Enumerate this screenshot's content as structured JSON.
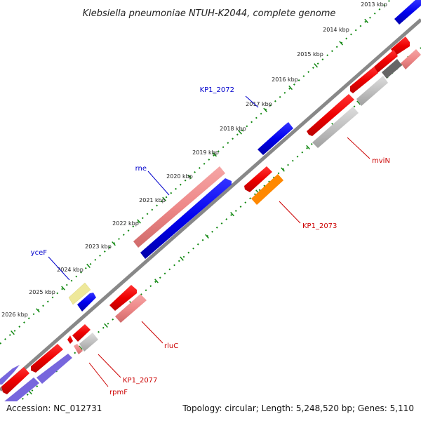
{
  "title": "Klebsiella pneumoniae NTUH-K2044, complete genome",
  "ticks": [
    "2013 kbp",
    "2014 kbp",
    "2015 kbp",
    "2016 kbp",
    "2017 kbp",
    "2018 kbp",
    "2019 kbp",
    "2020 kbp",
    "2021 kbp",
    "2022 kbp",
    "2023 kbp",
    "2024 kbp",
    "2025 kbp",
    "2026 kbp"
  ],
  "labels": {
    "kp1_2072": "KP1_2072",
    "rne": "rne",
    "ycef": "yceF",
    "mvin": "mviN",
    "kp1_2073": "KP1_2073",
    "rluc": "rluC",
    "kp1_2077": "KP1_2077",
    "rpmf": "rpmF"
  },
  "colors": {
    "forward": "#0000ee",
    "forward_light": "#7766dd",
    "reverse": "#ee0000",
    "reverse_light": "#ee8888",
    "pseudo_yellow": "#eee89a",
    "orange": "#ff8800",
    "gray_light": "#c0c0c0",
    "gray_dark": "#777777",
    "backbone": "#888888",
    "tick_green": "#118811"
  },
  "footer": {
    "accession": "Accession: NC_012731",
    "stats": "Topology: circular; Length: 5,248,520 bp; Genes: 5,110"
  }
}
